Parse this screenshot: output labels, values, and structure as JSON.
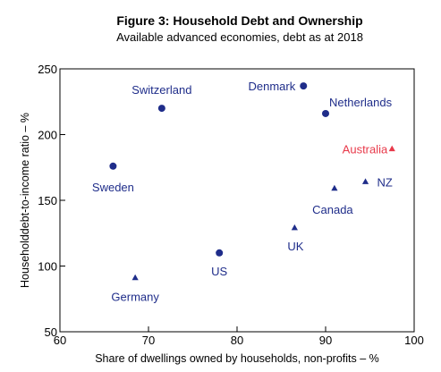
{
  "chart_data": {
    "type": "scatter",
    "title": "Figure 3: Household Debt and Ownership",
    "subtitle": "Available advanced economies, debt as at 2018",
    "xlabel": "Share of dwellings owned by households, non-profits – %",
    "ylabel": "Householddebt-to-income ratio – %",
    "xlim": [
      60,
      100
    ],
    "ylim": [
      50,
      250
    ],
    "xticks": [
      "60",
      "70",
      "80",
      "90",
      "100"
    ],
    "yticks": [
      "50",
      "100",
      "150",
      "200",
      "250"
    ],
    "grid": false,
    "colors": {
      "default": "#1f2d8a",
      "highlight": "#e8394a"
    },
    "points": [
      {
        "label": "Switzerland",
        "x": 71.5,
        "y": 220,
        "marker": "circle",
        "highlight": false
      },
      {
        "label": "Denmark",
        "x": 87.5,
        "y": 237,
        "marker": "circle",
        "highlight": false
      },
      {
        "label": "Netherlands",
        "x": 90,
        "y": 216,
        "marker": "circle",
        "highlight": false
      },
      {
        "label": "Australia",
        "x": 97.5,
        "y": 189,
        "marker": "triangle",
        "highlight": true
      },
      {
        "label": "Sweden",
        "x": 66,
        "y": 176,
        "marker": "circle",
        "highlight": false
      },
      {
        "label": "NZ",
        "x": 94.5,
        "y": 164,
        "marker": "triangle",
        "highlight": false
      },
      {
        "label": "Canada",
        "x": 91,
        "y": 159,
        "marker": "triangle",
        "highlight": false
      },
      {
        "label": "UK",
        "x": 86.5,
        "y": 129,
        "marker": "triangle",
        "highlight": false
      },
      {
        "label": "US",
        "x": 78,
        "y": 110,
        "marker": "circle",
        "highlight": false
      },
      {
        "label": "Germany",
        "x": 68.5,
        "y": 91,
        "marker": "triangle",
        "highlight": false
      }
    ]
  }
}
